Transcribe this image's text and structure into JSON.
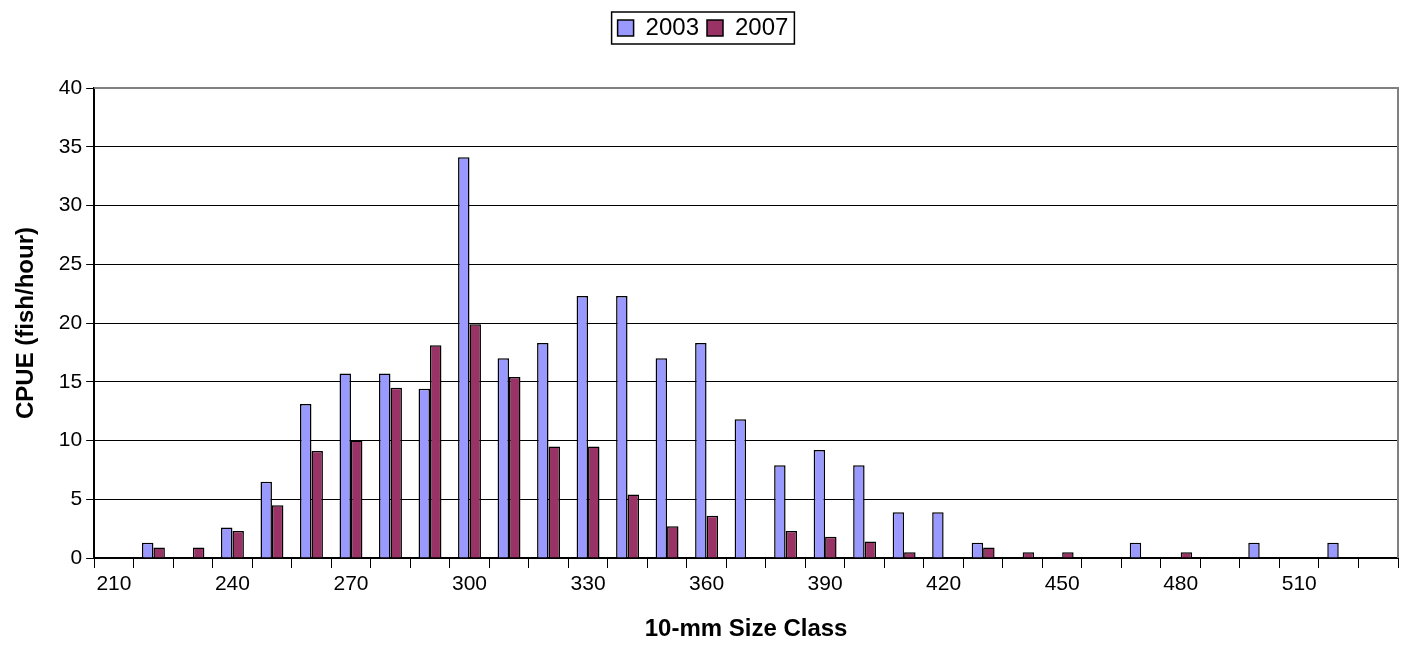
{
  "chart_data": {
    "type": "bar",
    "xlabel": "10-mm Size Class",
    "ylabel": "CPUE (fish/hour)",
    "categories": [
      "210",
      null,
      null,
      "240",
      null,
      null,
      "270",
      null,
      null,
      "300",
      null,
      null,
      "330",
      null,
      null,
      "360",
      null,
      null,
      "390",
      null,
      null,
      "420",
      null,
      null,
      "450",
      null,
      null,
      "480",
      null,
      null,
      "510",
      null,
      null
    ],
    "series": [
      {
        "name": "2003",
        "color": "#9999ff",
        "values": [
          null,
          1.3,
          null,
          2.6,
          6.5,
          13.1,
          15.7,
          15.7,
          14.4,
          34.1,
          17.0,
          18.3,
          22.3,
          22.3,
          17.0,
          18.3,
          11.8,
          7.9,
          9.2,
          7.9,
          3.9,
          3.9,
          1.3,
          null,
          null,
          null,
          1.3,
          null,
          null,
          1.3,
          null,
          1.3,
          null
        ]
      },
      {
        "name": "2007",
        "color": "#993366",
        "values": [
          null,
          0.9,
          0.9,
          2.3,
          4.5,
          9.1,
          10.0,
          14.5,
          18.1,
          19.9,
          15.4,
          9.5,
          9.5,
          5.4,
          2.7,
          3.6,
          null,
          2.3,
          1.8,
          1.4,
          0.5,
          null,
          0.9,
          0.5,
          0.5,
          null,
          null,
          0.5,
          null,
          null,
          null,
          null,
          null
        ]
      }
    ],
    "ylim": [
      0,
      40
    ],
    "yticks": [
      0,
      5,
      10,
      15,
      20,
      25,
      30,
      35,
      40
    ],
    "grid": "y",
    "legend": "top"
  }
}
